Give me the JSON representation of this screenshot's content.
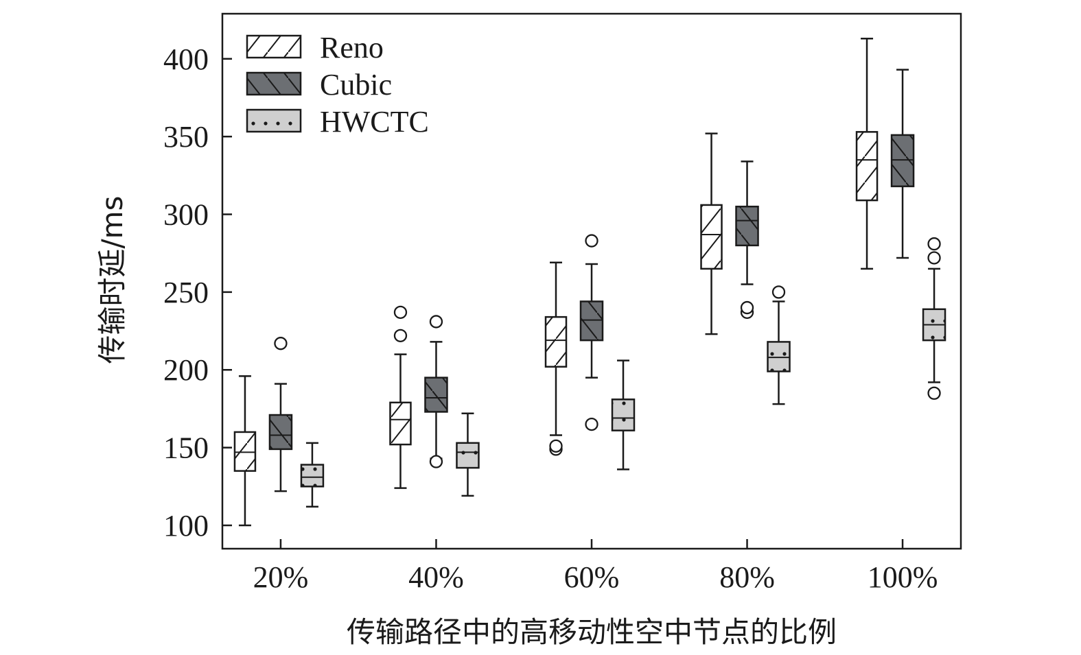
{
  "chart_data": {
    "type": "boxplot",
    "title": "",
    "xlabel": "传输路径中的高移动性空中节点的比例",
    "ylabel": "传输时延/ms",
    "categories": [
      "20%",
      "40%",
      "60%",
      "80%",
      "100%"
    ],
    "ylim": [
      85,
      429
    ],
    "yticks": [
      100,
      150,
      200,
      250,
      300,
      350,
      400
    ],
    "grid": false,
    "legend_position": "top-left",
    "series": [
      {
        "name": "Reno",
        "fill": "#ffffff",
        "pattern": "forward-hatch",
        "boxes": [
          {
            "whisker_low": 100,
            "q1": 135,
            "median": 147,
            "q3": 160,
            "whisker_high": 196,
            "outliers": []
          },
          {
            "whisker_low": 124,
            "q1": 152,
            "median": 168,
            "q3": 179,
            "whisker_high": 210,
            "outliers": [
              222,
              237
            ]
          },
          {
            "whisker_low": 158,
            "q1": 202,
            "median": 219,
            "q3": 234,
            "whisker_high": 269,
            "outliers": [
              149,
              151
            ]
          },
          {
            "whisker_low": 223,
            "q1": 265,
            "median": 287,
            "q3": 306,
            "whisker_high": 352,
            "outliers": []
          },
          {
            "whisker_low": 265,
            "q1": 309,
            "median": 335,
            "q3": 353,
            "whisker_high": 413,
            "outliers": []
          }
        ]
      },
      {
        "name": "Cubic",
        "fill": "#6c6f73",
        "pattern": "back-hatch",
        "boxes": [
          {
            "whisker_low": 122,
            "q1": 149,
            "median": 158,
            "q3": 171,
            "whisker_high": 191,
            "outliers": [
              217
            ]
          },
          {
            "whisker_low": 143,
            "q1": 173,
            "median": 182,
            "q3": 195,
            "whisker_high": 218,
            "outliers": [
              141,
              231
            ]
          },
          {
            "whisker_low": 195,
            "q1": 219,
            "median": 232,
            "q3": 244,
            "whisker_high": 268,
            "outliers": [
              165,
              283
            ]
          },
          {
            "whisker_low": 255,
            "q1": 280,
            "median": 296,
            "q3": 305,
            "whisker_high": 334,
            "outliers": [
              237,
              240
            ]
          },
          {
            "whisker_low": 272,
            "q1": 318,
            "median": 335,
            "q3": 351,
            "whisker_high": 393,
            "outliers": []
          }
        ]
      },
      {
        "name": "HWCTC",
        "fill": "#cfcfcf",
        "pattern": "dots",
        "boxes": [
          {
            "whisker_low": 112,
            "q1": 125,
            "median": 131,
            "q3": 139,
            "whisker_high": 153,
            "outliers": []
          },
          {
            "whisker_low": 119,
            "q1": 137,
            "median": 147,
            "q3": 153,
            "whisker_high": 172,
            "outliers": []
          },
          {
            "whisker_low": 136,
            "q1": 161,
            "median": 169,
            "q3": 181,
            "whisker_high": 206,
            "outliers": []
          },
          {
            "whisker_low": 178,
            "q1": 199,
            "median": 208,
            "q3": 218,
            "whisker_high": 244,
            "outliers": [
              250
            ]
          },
          {
            "whisker_low": 192,
            "q1": 219,
            "median": 229,
            "q3": 239,
            "whisker_high": 265,
            "outliers": [
              185,
              272,
              281
            ]
          }
        ]
      }
    ]
  }
}
